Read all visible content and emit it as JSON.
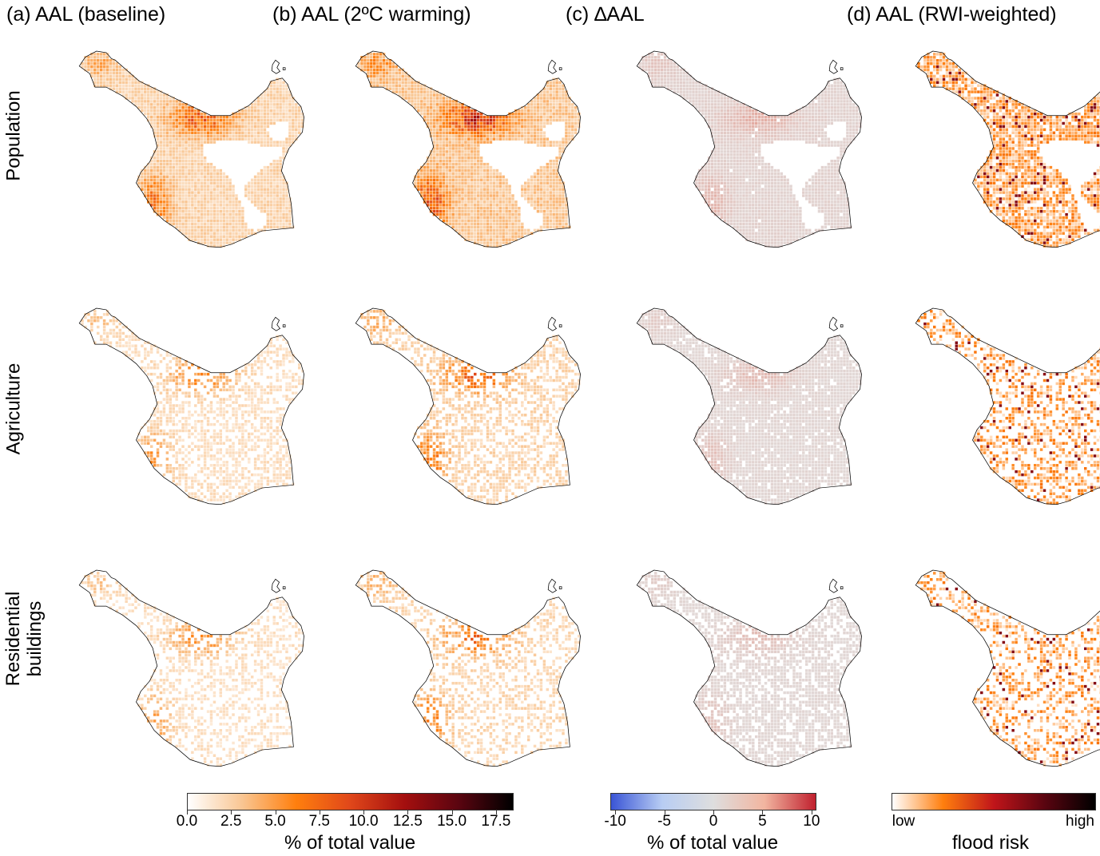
{
  "columns": [
    {
      "title": "(a) AAL (baseline)"
    },
    {
      "title": "(b) AAL (2ºC warming)"
    },
    {
      "title": "(c) ∆AAL"
    },
    {
      "title": "(d) AAL (RWI-weighted)"
    }
  ],
  "rows": [
    {
      "label_line1": "Population",
      "label_line2": ""
    },
    {
      "label_line1": "Agriculture",
      "label_line2": ""
    },
    {
      "label_line1": "Residential",
      "label_line2": "buildings"
    }
  ],
  "legends": {
    "aal": {
      "ticks": [
        "0.0",
        "2.5",
        "5.0",
        "7.5",
        "10.0",
        "12.5",
        "15.0",
        "17.5"
      ],
      "label": "% of total value",
      "range": [
        0,
        18.5
      ],
      "colors": [
        "#ffffff",
        "#f9c693",
        "#ff7f0e",
        "#e0471a",
        "#a40f0f",
        "#5a0510",
        "#000000"
      ]
    },
    "delta": {
      "ticks": [
        "-10",
        "-5",
        "0",
        "5",
        "10"
      ],
      "label": "% of total value",
      "range": [
        -10.5,
        10.5
      ],
      "colors": [
        "#3a55d6",
        "#b8cdf3",
        "#dedede",
        "#f2b5a0",
        "#c0202e"
      ]
    },
    "rwi": {
      "ticks": [
        "low",
        "high"
      ],
      "label": "flood risk",
      "colors": [
        "#ffffff",
        "#ff7f0e",
        "#c0151a",
        "#5a0510",
        "#000000"
      ]
    }
  },
  "colors": {
    "outline": "#000000",
    "delta_neutral": "#dcdcdc",
    "aal_cell": "#f08a2a"
  }
}
